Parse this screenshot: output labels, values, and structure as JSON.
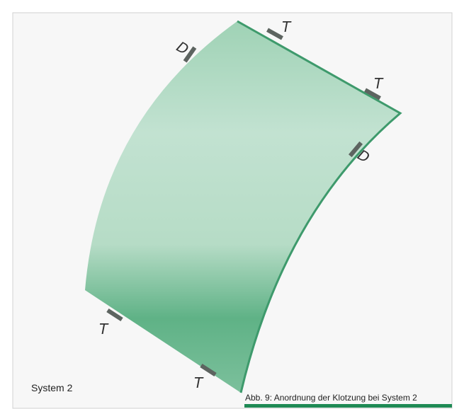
{
  "markers": [
    {
      "label": "T"
    },
    {
      "label": "T"
    },
    {
      "label": "D"
    },
    {
      "label": "D"
    },
    {
      "label": "T"
    },
    {
      "label": "T"
    }
  ],
  "system_label": "System 2",
  "caption": "Abb. 9: Anordnung der Klotzung bei System 2"
}
